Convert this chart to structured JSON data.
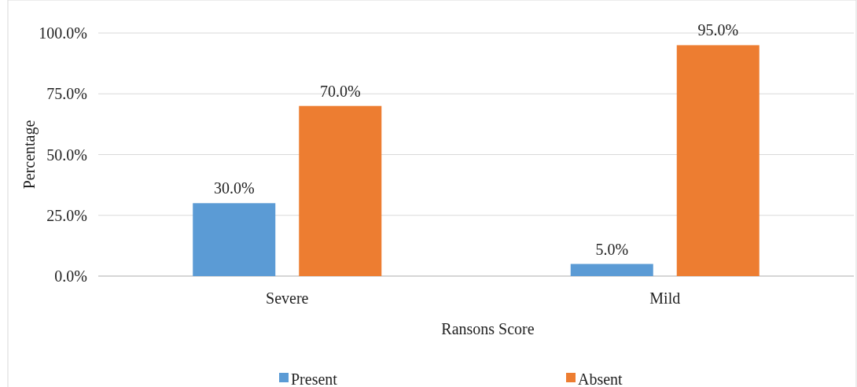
{
  "chart_data": {
    "type": "bar",
    "xlabel": "Ransons Score",
    "ylabel": "Percentage",
    "categories": [
      "Severe",
      "Mild"
    ],
    "series": [
      {
        "name": "Present",
        "color": "#5b9bd5",
        "values": [
          30,
          5
        ],
        "value_labels": [
          "30.0%",
          "5.0%"
        ]
      },
      {
        "name": "Absent",
        "color": "#ed7d31",
        "values": [
          70,
          95
        ],
        "value_labels": [
          "70.0%",
          "95.0%"
        ]
      }
    ],
    "ylim": [
      0,
      100
    ],
    "yticks": [
      {
        "value": 0,
        "label": "0.0%"
      },
      {
        "value": 25,
        "label": "25.0%"
      },
      {
        "value": 50,
        "label": "50.0%"
      },
      {
        "value": 75,
        "label": "75.0%"
      },
      {
        "value": 100,
        "label": "100.0%"
      }
    ],
    "grid": "y",
    "legend": "bottom"
  }
}
